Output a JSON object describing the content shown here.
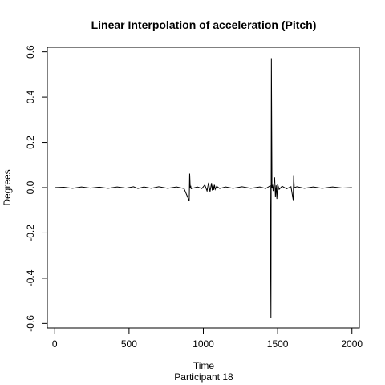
{
  "chart_data": {
    "type": "line",
    "title": "Linear Interpolation of acceleration (Pitch)",
    "xlabel": "Time",
    "subtitle": "Participant  18",
    "ylabel": "Degrees",
    "xlim": [
      -50,
      2050
    ],
    "ylim": [
      -0.62,
      0.62
    ],
    "x_ticks": [
      0,
      500,
      1000,
      1500,
      2000
    ],
    "x_tick_labels": [
      "0",
      "500",
      "1000",
      "1500",
      "2000"
    ],
    "y_ticks": [
      -0.6,
      -0.4,
      -0.2,
      0.0,
      0.2,
      0.4,
      0.6
    ],
    "y_tick_labels": [
      "-0.6",
      "-0.4",
      "-0.2",
      "0.0",
      "0.2",
      "0.4",
      "0.6"
    ],
    "grid": false,
    "line_color": "#000000",
    "series": [
      {
        "x": [
          0,
          60,
          120,
          180,
          240,
          300,
          360,
          420,
          480,
          530,
          560,
          600,
          650,
          700,
          760,
          820,
          870,
          905,
          908,
          912,
          915,
          918,
          960,
          990,
          1010,
          1025,
          1035,
          1045,
          1055,
          1060,
          1065,
          1070,
          1075,
          1080,
          1090,
          1110,
          1150,
          1200,
          1260,
          1320,
          1380,
          1420,
          1450,
          1455,
          1458,
          1462,
          1465,
          1470,
          1475,
          1480,
          1485,
          1490,
          1495,
          1500,
          1510,
          1530,
          1560,
          1590,
          1605,
          1608,
          1612,
          1630,
          1680,
          1740,
          1800,
          1870,
          1940,
          2000
        ],
        "values": [
          0,
          0.002,
          -0.003,
          0.003,
          -0.002,
          0.002,
          -0.003,
          0.003,
          -0.002,
          0.004,
          -0.004,
          0.003,
          -0.003,
          0.004,
          -0.003,
          0.003,
          -0.004,
          -0.058,
          0.062,
          0.0,
          0.008,
          -0.005,
          0.003,
          -0.004,
          0.012,
          -0.015,
          0.022,
          -0.018,
          0.02,
          -0.012,
          0.015,
          -0.01,
          0.012,
          -0.008,
          0.006,
          -0.004,
          0.003,
          -0.003,
          0.004,
          -0.003,
          0.003,
          -0.004,
          0.008,
          -0.575,
          0.572,
          0.0,
          0.012,
          -0.015,
          0.02,
          0.045,
          -0.04,
          0.01,
          -0.05,
          0.015,
          -0.008,
          0.006,
          -0.005,
          0.004,
          -0.055,
          0.055,
          0.0,
          0.004,
          -0.003,
          0.003,
          -0.003,
          0.003,
          -0.002,
          0.0
        ]
      }
    ]
  }
}
